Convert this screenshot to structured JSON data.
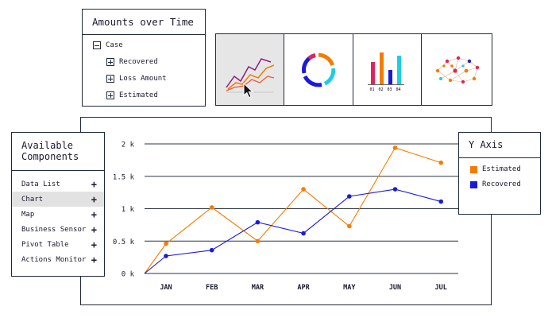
{
  "tree": {
    "title": "Amounts over Time",
    "root": "Case",
    "children": [
      "Recovered",
      "Loss Amount",
      "Estimated"
    ]
  },
  "chart_types": [
    {
      "icon": "line-chart-icon",
      "active": true
    },
    {
      "icon": "donut-chart-icon",
      "active": false
    },
    {
      "icon": "bar-chart-icon",
      "active": false,
      "labels": [
        "01",
        "02",
        "03",
        "04"
      ]
    },
    {
      "icon": "network-graph-icon",
      "active": false
    }
  ],
  "components": {
    "title_line1": "Available",
    "title_line2": "Components",
    "items": [
      {
        "label": "Data List",
        "selected": false
      },
      {
        "label": "Chart",
        "selected": true
      },
      {
        "label": "Map",
        "selected": false
      },
      {
        "label": "Business Sensor",
        "selected": false
      },
      {
        "label": "Pivot Table",
        "selected": false
      },
      {
        "label": "Actions Monitor",
        "selected": false
      }
    ],
    "add_glyph": "+"
  },
  "yaxis": {
    "title": "Y Axis",
    "series": [
      {
        "name": "Estimated",
        "color": "#f57c00"
      },
      {
        "name": "Recovered",
        "color": "#1a1adb"
      }
    ]
  },
  "chart_data": {
    "type": "line",
    "categories": [
      "JAN",
      "FEB",
      "MAR",
      "APR",
      "MAY",
      "JUN",
      "JUL"
    ],
    "y_ticks": [
      "0 k",
      "0.5 k",
      "1 k",
      "1.5 k",
      "2 k"
    ],
    "ylim": [
      0,
      2000
    ],
    "grid": true,
    "series": [
      {
        "name": "Estimated",
        "color": "#f57c00",
        "values": [
          460,
          1020,
          500,
          1300,
          730,
          1940,
          1710
        ]
      },
      {
        "name": "Recovered",
        "color": "#1a1adb",
        "values": [
          270,
          360,
          790,
          620,
          1190,
          1300,
          1110
        ]
      }
    ]
  }
}
